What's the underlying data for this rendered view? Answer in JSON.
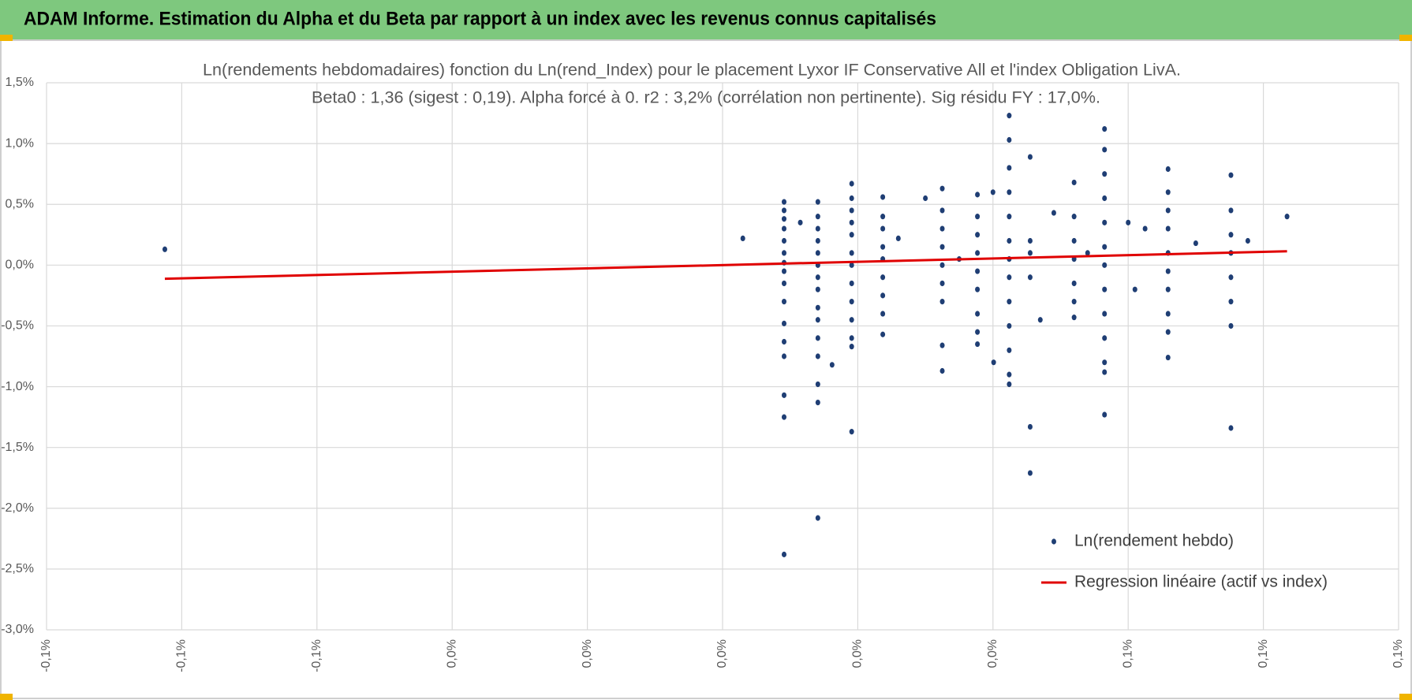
{
  "header": {
    "title": "ADAM Informe. Estimation du Alpha et du Beta par rapport à un index avec les revenus connus capitalisés"
  },
  "chart_data": {
    "type": "scatter",
    "title": "Ln(rendements hebdomadaires) fonction du Ln(rend_Index) pour le placement Lyxor IF Conservative All et l'index Obligation LivA.",
    "subtitle": "Beta0 : 1,36 (sigest : 0,19). Alpha forcé à 0. r2 : 3,2% (corrélation non pertinente). Sig résidu FY : 17,0%.",
    "xlim": [
      -0.1,
      0.1
    ],
    "xticks": [
      {
        "value": -0.1,
        "label": "-0,1%"
      },
      {
        "value": -0.08,
        "label": "-0,1%"
      },
      {
        "value": -0.06,
        "label": "-0,1%"
      },
      {
        "value": -0.04,
        "label": "0,0%"
      },
      {
        "value": -0.02,
        "label": "0,0%"
      },
      {
        "value": 0,
        "label": "0,0%"
      },
      {
        "value": 0.02,
        "label": "0,0%"
      },
      {
        "value": 0.04,
        "label": "0,0%"
      },
      {
        "value": 0.06,
        "label": "0,1%"
      },
      {
        "value": 0.08,
        "label": "0,1%"
      },
      {
        "value": 0.1,
        "label": "0,1%"
      }
    ],
    "ylim": [
      -3,
      1.5
    ],
    "yticks": [
      {
        "value": -3,
        "label": "-3,0%"
      },
      {
        "value": -2.5,
        "label": "-2,5%"
      },
      {
        "value": -2,
        "label": "-2,0%"
      },
      {
        "value": -1.5,
        "label": "-1,5%"
      },
      {
        "value": -1,
        "label": "-1,0%"
      },
      {
        "value": -0.5,
        "label": "-0,5%"
      },
      {
        "value": 0,
        "label": "0,0%"
      },
      {
        "value": 0.5,
        "label": "0,5%"
      },
      {
        "value": 1,
        "label": "1,0%"
      },
      {
        "value": 1.5,
        "label": "1,5%"
      }
    ],
    "grid": true,
    "legend": "lower right",
    "series": [
      {
        "name": "Ln(rendement hebdo)",
        "color": "#1f3e74",
        "mode": "markers",
        "x": [
          0.0091,
          0.0091,
          0.0091,
          0.0091,
          0.0091,
          0.0091,
          0.0091,
          0.0091,
          0.0091,
          0.0091,
          0.0091,
          0.0091,
          0.0091,
          0.0091,
          0.0091,
          0.0091,
          0.0141,
          0.0141,
          0.0141,
          0.0141,
          0.0141,
          0.0141,
          0.0141,
          0.0141,
          0.0141,
          0.0141,
          0.0141,
          0.0141,
          0.0141,
          0.0141,
          0.0141,
          0.0191,
          0.0191,
          0.0191,
          0.0191,
          0.0191,
          0.0191,
          0.0191,
          0.0191,
          0.0191,
          0.0191,
          0.0191,
          0.0191,
          0.0191,
          0.0237,
          0.0237,
          0.0237,
          0.0237,
          0.0237,
          0.0237,
          0.0237,
          0.0237,
          0.0237,
          0.0325,
          0.0325,
          0.0325,
          0.0325,
          0.0325,
          0.0325,
          0.0325,
          0.0325,
          0.0325,
          0.0377,
          0.0377,
          0.0377,
          0.0377,
          0.0377,
          0.0377,
          0.0377,
          0.0377,
          0.0377,
          0.0424,
          0.0424,
          0.0424,
          0.0424,
          0.0424,
          0.0424,
          0.0424,
          0.0424,
          0.0424,
          0.0424,
          0.0424,
          0.0424,
          0.0424,
          0.0455,
          0.0455,
          0.0455,
          0.0455,
          0.0455,
          0.0455,
          0.052,
          0.052,
          0.052,
          0.052,
          0.052,
          0.052,
          0.052,
          0.0565,
          0.0565,
          0.0565,
          0.0565,
          0.0565,
          0.0565,
          0.0565,
          0.0565,
          0.0565,
          0.0565,
          0.0565,
          0.0565,
          0.0565,
          0.0659,
          0.0659,
          0.0659,
          0.0659,
          0.0659,
          0.0659,
          0.0659,
          0.0659,
          0.0659,
          0.0659,
          0.0752,
          0.0752,
          0.0752,
          0.0752,
          0.0752,
          0.0752,
          0.0752,
          0.0752,
          -0.0825,
          0.0835,
          0.003,
          0.0115,
          0.026,
          0.03,
          0.035,
          0.04,
          0.049,
          0.06,
          0.0625,
          0.07,
          0.0777,
          0.054,
          0.047,
          0.0162,
          0.0401,
          0.061
        ],
        "values": [
          0.52,
          0.45,
          0.38,
          0.3,
          0.2,
          0.1,
          0.02,
          -0.05,
          -0.15,
          -0.3,
          -0.48,
          -0.63,
          -0.75,
          -1.07,
          -1.25,
          -2.38,
          0.52,
          0.4,
          0.3,
          0.2,
          0.1,
          0.0,
          -0.1,
          -0.2,
          -0.35,
          -0.45,
          -0.6,
          -0.75,
          -0.98,
          -1.13,
          -2.08,
          0.67,
          0.55,
          0.45,
          0.35,
          0.25,
          0.1,
          0.0,
          -0.15,
          -0.3,
          -0.45,
          -0.6,
          -0.67,
          -1.37,
          0.56,
          0.4,
          0.3,
          0.15,
          0.05,
          -0.1,
          -0.25,
          -0.4,
          -0.57,
          0.63,
          0.45,
          0.3,
          0.15,
          0.0,
          -0.15,
          -0.3,
          -0.66,
          -0.87,
          0.58,
          0.4,
          0.25,
          0.1,
          -0.05,
          -0.2,
          -0.4,
          -0.55,
          -0.65,
          1.23,
          1.03,
          0.8,
          0.6,
          0.4,
          0.2,
          0.05,
          -0.1,
          -0.3,
          -0.5,
          -0.7,
          -0.9,
          -0.98,
          0.89,
          0.2,
          0.1,
          -0.1,
          -1.33,
          -1.71,
          0.68,
          0.4,
          0.2,
          0.05,
          -0.15,
          -0.3,
          -0.43,
          1.12,
          0.95,
          0.75,
          0.55,
          0.35,
          0.15,
          0.0,
          -0.2,
          -0.4,
          -0.6,
          -0.8,
          -0.88,
          -1.23,
          0.79,
          0.6,
          0.45,
          0.3,
          0.1,
          -0.05,
          -0.2,
          -0.4,
          -0.55,
          -0.76,
          0.74,
          0.45,
          0.25,
          0.1,
          -0.1,
          -0.3,
          -0.5,
          -1.34,
          0.13,
          0.4,
          0.22,
          0.35,
          0.22,
          0.55,
          0.05,
          0.6,
          0.43,
          0.35,
          0.3,
          0.18,
          0.2,
          0.1,
          -0.45,
          -0.82,
          -0.8,
          -0.2
        ]
      },
      {
        "name": "Regression linéaire (actif vs index)",
        "color": "#e00000",
        "mode": "line",
        "x": [
          -0.0825,
          0.0835
        ],
        "values": [
          -0.112,
          0.114
        ]
      }
    ]
  }
}
